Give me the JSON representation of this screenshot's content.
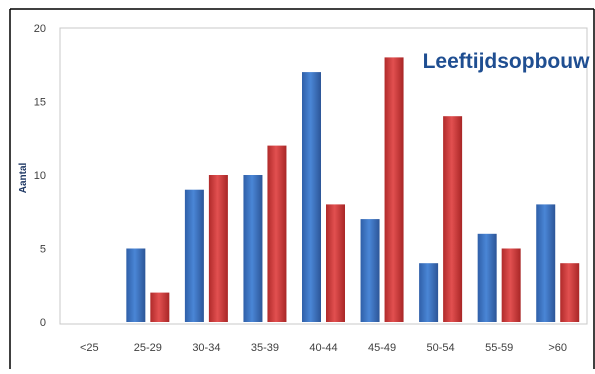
{
  "chart_data": {
    "type": "bar",
    "title": "Leeftijdsopbouw",
    "xlabel": "",
    "ylabel": "Aantal",
    "categories": [
      "<25",
      "25-29",
      "30-34",
      "35-39",
      "40-44",
      "45-49",
      "50-54",
      "55-59",
      ">60"
    ],
    "series": [
      {
        "color": "#3f73c0",
        "values": [
          0,
          5,
          9,
          10,
          17,
          7,
          4,
          6,
          8
        ]
      },
      {
        "color": "#d03d3d",
        "values": [
          0,
          2,
          10,
          12,
          8,
          18,
          14,
          5,
          4
        ]
      }
    ],
    "ylim": [
      0,
      20
    ],
    "yticks": [
      0,
      5,
      10,
      15,
      20
    ],
    "grid": false,
    "legend": "none",
    "colors": {
      "title": "#1f4e91",
      "axis_text": "#404040",
      "ylabel": "#1f3864",
      "frame": "#000000"
    }
  }
}
